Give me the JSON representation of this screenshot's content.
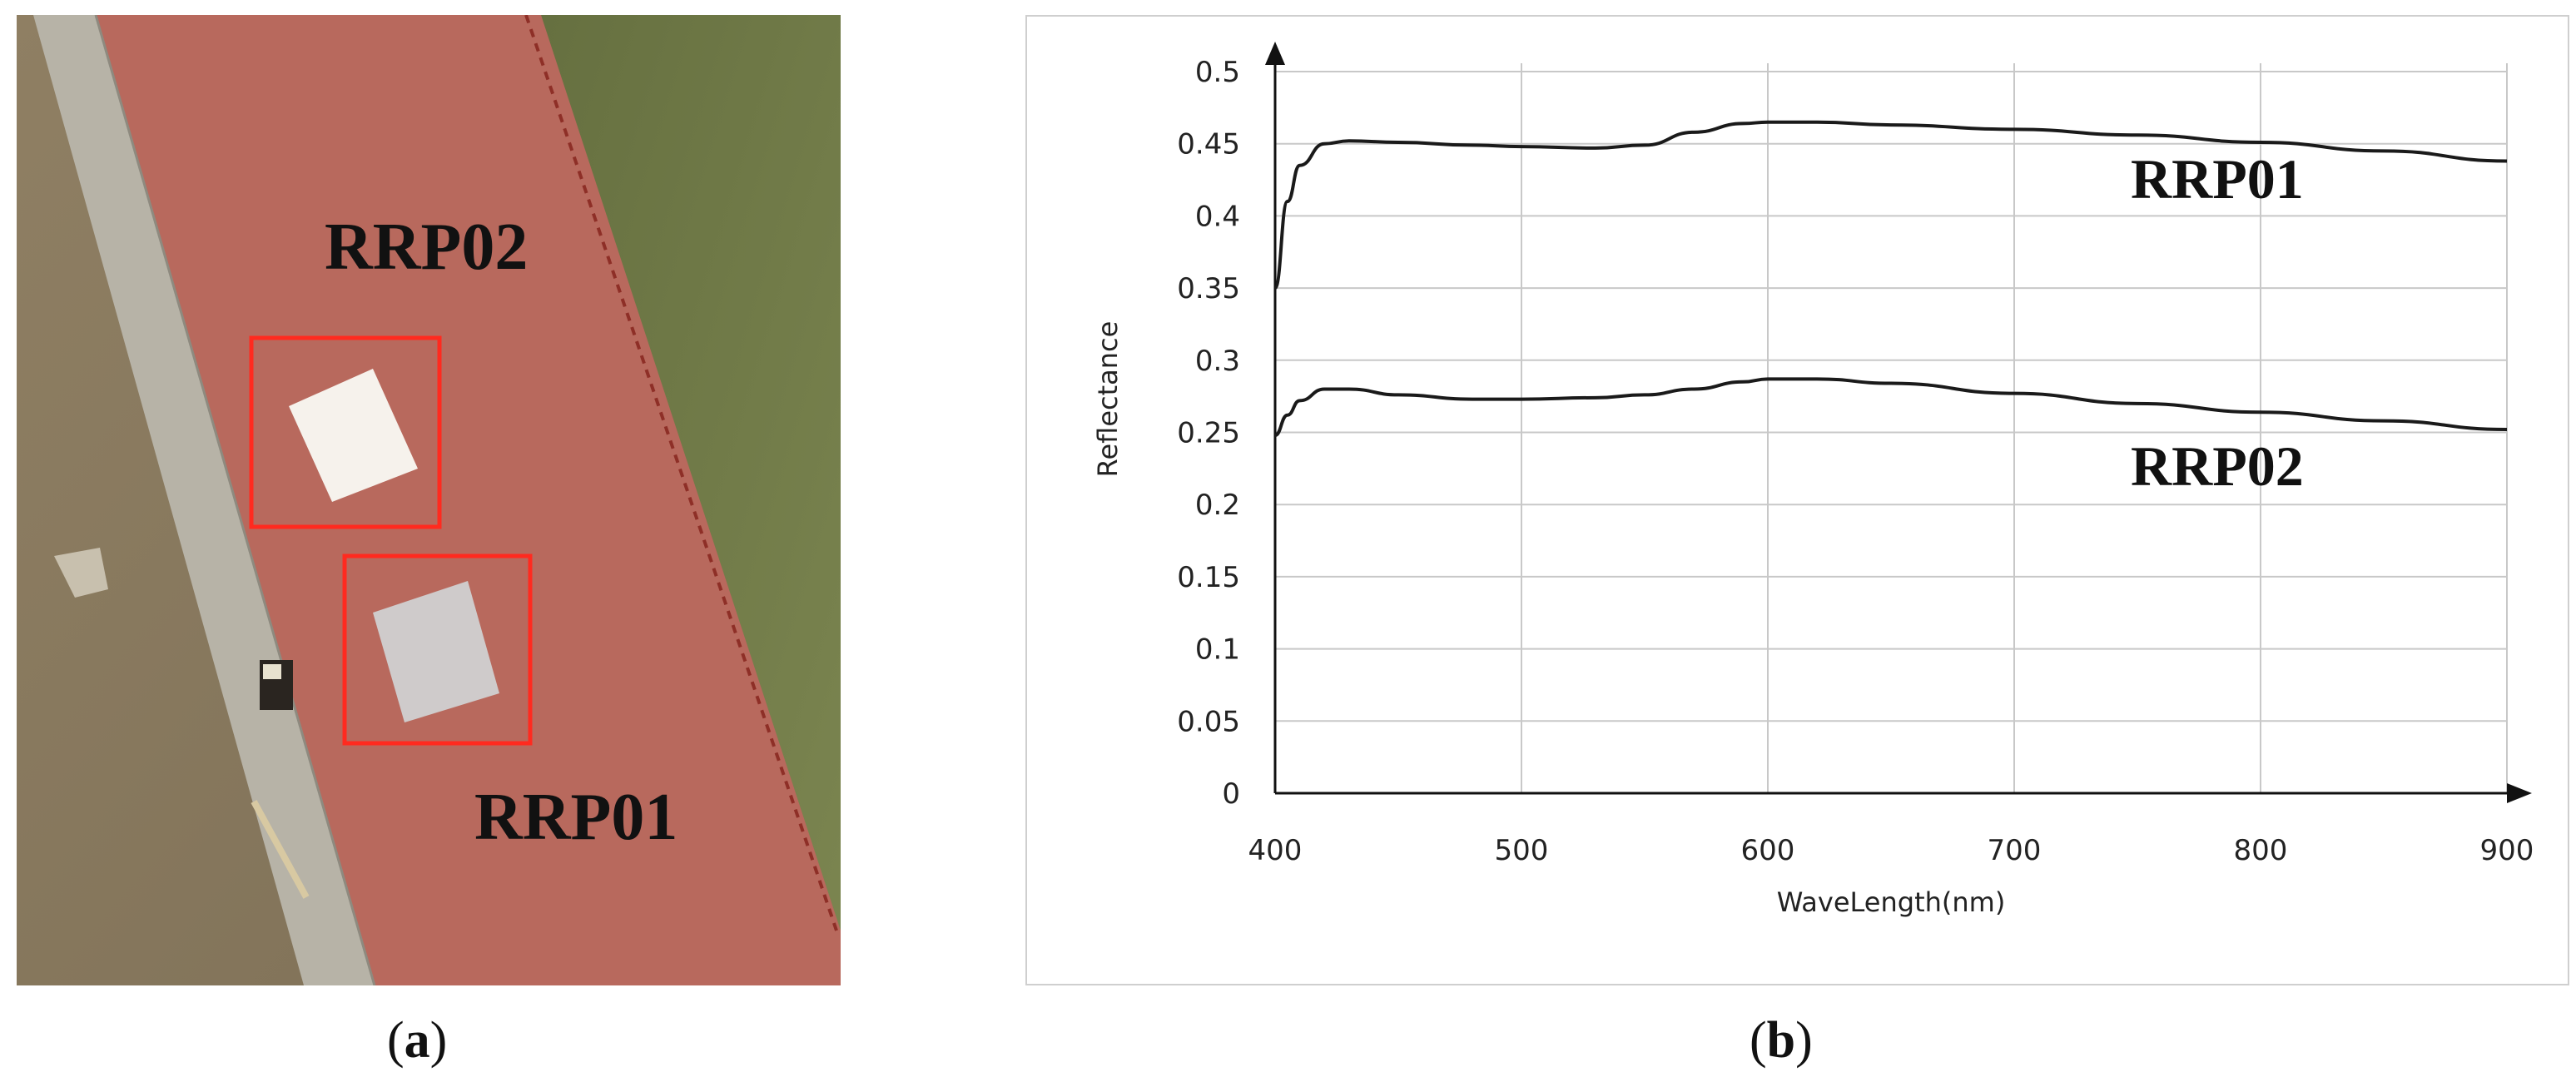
{
  "panel_a": {
    "labels": {
      "rrp02": "RRP02",
      "rrp01": "RRP01"
    },
    "colors": {
      "track": "#b8695d",
      "grass": "#6f7a45",
      "path": "#b8b4a8",
      "soil": "#8a7a5e",
      "box": "#ff2a1f"
    },
    "caption": {
      "open": "(",
      "letter": "a",
      "close": ")"
    }
  },
  "panel_b": {
    "caption": {
      "open": "(",
      "letter": "b",
      "close": ")"
    }
  },
  "chart_data": {
    "type": "line",
    "xlabel": "WaveLength(nm)",
    "ylabel": "Reflectance",
    "xlim": [
      400,
      900
    ],
    "ylim": [
      0,
      0.5
    ],
    "xticks": [
      400,
      500,
      600,
      700,
      800,
      900
    ],
    "yticks": [
      0,
      0.05,
      0.1,
      0.15,
      0.2,
      0.25,
      0.3,
      0.35,
      0.4,
      0.45,
      0.5
    ],
    "grid": true,
    "series": [
      {
        "name": "RRP01",
        "x": [
          400,
          405,
          410,
          420,
          430,
          450,
          480,
          500,
          530,
          550,
          570,
          590,
          600,
          620,
          650,
          700,
          750,
          800,
          850,
          900
        ],
        "values": [
          0.35,
          0.41,
          0.435,
          0.45,
          0.452,
          0.451,
          0.449,
          0.448,
          0.447,
          0.449,
          0.458,
          0.464,
          0.465,
          0.465,
          0.463,
          0.46,
          0.456,
          0.451,
          0.445,
          0.438
        ]
      },
      {
        "name": "RRP02",
        "x": [
          400,
          405,
          410,
          420,
          430,
          450,
          480,
          500,
          530,
          550,
          570,
          590,
          600,
          620,
          650,
          700,
          750,
          800,
          850,
          900
        ],
        "values": [
          0.248,
          0.262,
          0.272,
          0.28,
          0.28,
          0.276,
          0.273,
          0.273,
          0.274,
          0.276,
          0.28,
          0.285,
          0.287,
          0.287,
          0.284,
          0.277,
          0.27,
          0.264,
          0.258,
          0.252
        ]
      }
    ]
  }
}
